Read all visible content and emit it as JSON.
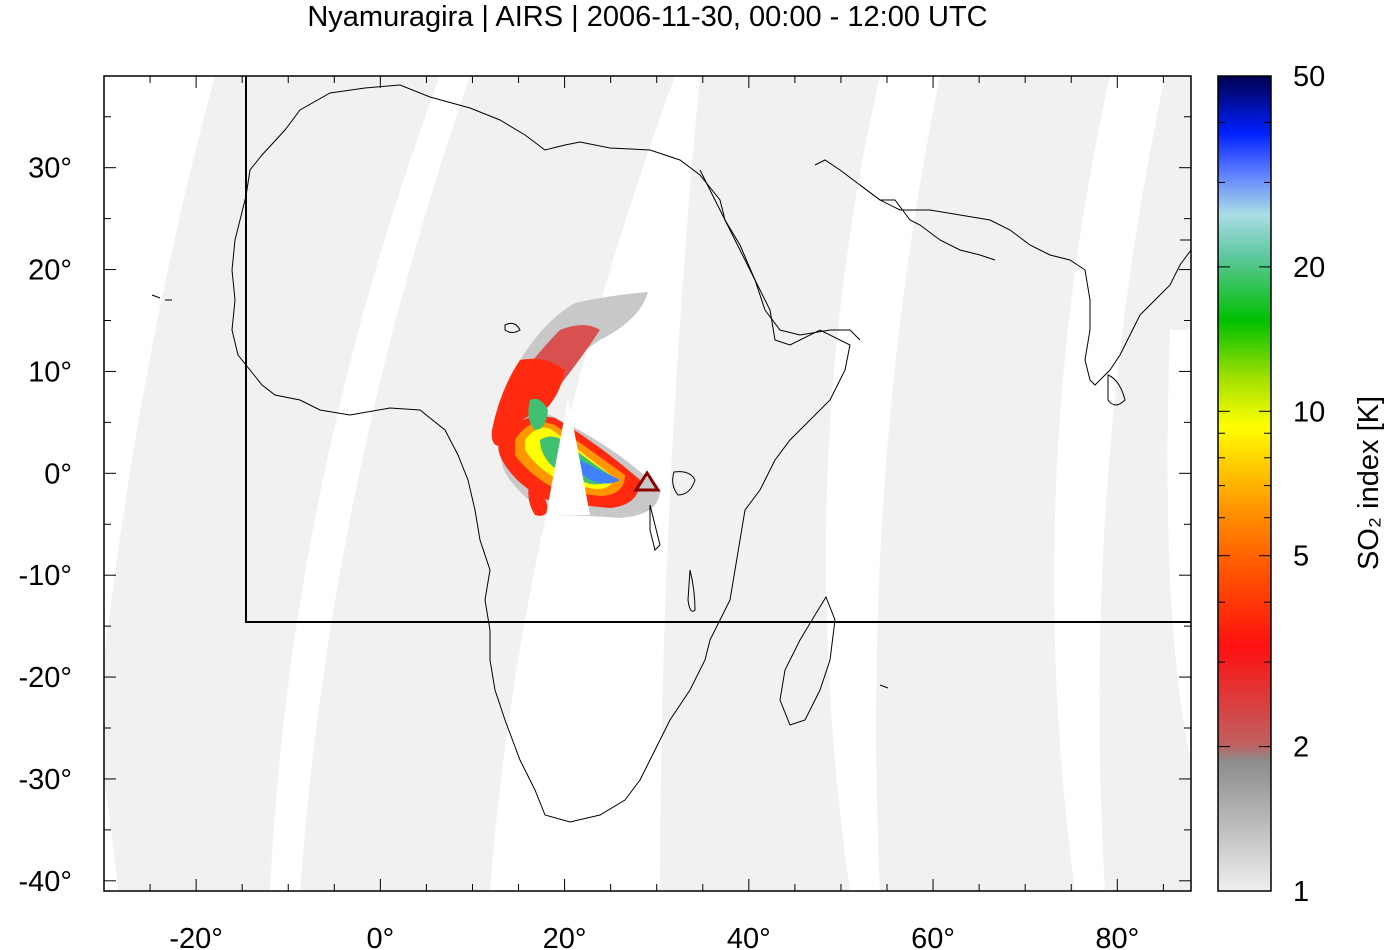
{
  "title": "Nyamuragira | AIRS | 2006-11-30, 00:00 - 12:00 UTC",
  "map": {
    "lon_range": [
      -30,
      88
    ],
    "lat_range": [
      -41,
      39
    ],
    "x_ticks": [
      {
        "value": -20,
        "label": "-20°"
      },
      {
        "value": 0,
        "label": "0°"
      },
      {
        "value": 20,
        "label": "20°"
      },
      {
        "value": 40,
        "label": "40°"
      },
      {
        "value": 60,
        "label": "60°"
      },
      {
        "value": 80,
        "label": "80°"
      }
    ],
    "y_ticks": [
      {
        "value": 30,
        "label": "30°"
      },
      {
        "value": 20,
        "label": "20°"
      },
      {
        "value": 10,
        "label": "10°"
      },
      {
        "value": 0,
        "label": "0°"
      },
      {
        "value": -10,
        "label": "-10°"
      },
      {
        "value": -20,
        "label": "-20°"
      },
      {
        "value": -30,
        "label": "-30°"
      },
      {
        "value": -40,
        "label": "-40°"
      }
    ],
    "volcano": {
      "name": "Nyamuragira",
      "lon": 29.2,
      "lat": -1.4,
      "marker": "triangle",
      "color": "#8b0000"
    },
    "background_color": "#f1f1f1",
    "swath_gap_color": "#ffffff"
  },
  "colorbar": {
    "label": "SO₂ index [K]",
    "scale": "log",
    "range": [
      1,
      50
    ],
    "ticks": [
      {
        "value": 1,
        "label": "1"
      },
      {
        "value": 2,
        "label": "2"
      },
      {
        "value": 5,
        "label": "5"
      },
      {
        "value": 10,
        "label": "10"
      },
      {
        "value": 20,
        "label": "20"
      },
      {
        "value": 50,
        "label": "50"
      }
    ],
    "colors": [
      "#e6e6e6",
      "#8c8c8c",
      "#d05050",
      "#ff1a00",
      "#ff8c00",
      "#ffff00",
      "#00c000",
      "#aadde6",
      "#3050ff",
      "#000050"
    ]
  }
}
